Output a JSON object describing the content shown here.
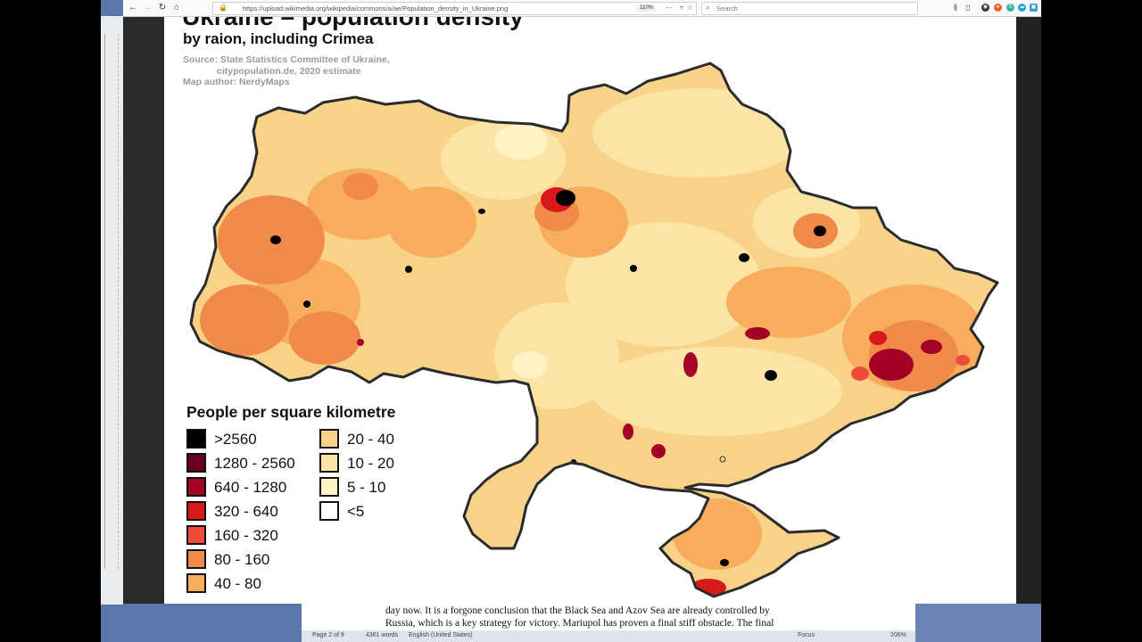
{
  "browser": {
    "url": "https://upload.wikimedia.org/wikipedia/commons/a/ae/Population_density_in_Ukraine.png",
    "zoom": "110%",
    "search_placeholder": "Search"
  },
  "map": {
    "title": "Ukraine – population density",
    "subtitle": "by raion, including Crimea",
    "source_line1": "Source: State Statistics Committee of Ukraine,",
    "source_line2": "citypopulation.de, 2020 estimate",
    "author": "Map author: NerdyMaps",
    "legend_title": "People per square kilometre",
    "legend": [
      {
        "label": ">2560",
        "color": "#000000"
      },
      {
        "label": "1280 - 2560",
        "color": "#67001f"
      },
      {
        "label": "640 - 1280",
        "color": "#a50026"
      },
      {
        "label": "320 - 640",
        "color": "#d7191c"
      },
      {
        "label": "160 - 320",
        "color": "#ef4b3a"
      },
      {
        "label": "80 - 160",
        "color": "#f08a4b"
      },
      {
        "label": "40 - 80",
        "color": "#f7ad5c"
      },
      {
        "label": "20 - 40",
        "color": "#f9d28a"
      },
      {
        "label": "10 - 20",
        "color": "#fbe5a6"
      },
      {
        "label": "5 - 10",
        "color": "#fdf3c4"
      },
      {
        "label": "<5",
        "color": "#ffffff"
      }
    ]
  },
  "document": {
    "line1": "day now. It is a forgone conclusion that the Black Sea and Azov Sea are already controlled by",
    "line2": "Russia, which is a key strategy for victory. Mariupol has proven a final stiff obstacle. The final",
    "status_page": "Page 2 of 9",
    "status_words": "4361 words",
    "status_lang": "English (United States)",
    "status_focus": "Focus",
    "status_zoom": "206%"
  }
}
